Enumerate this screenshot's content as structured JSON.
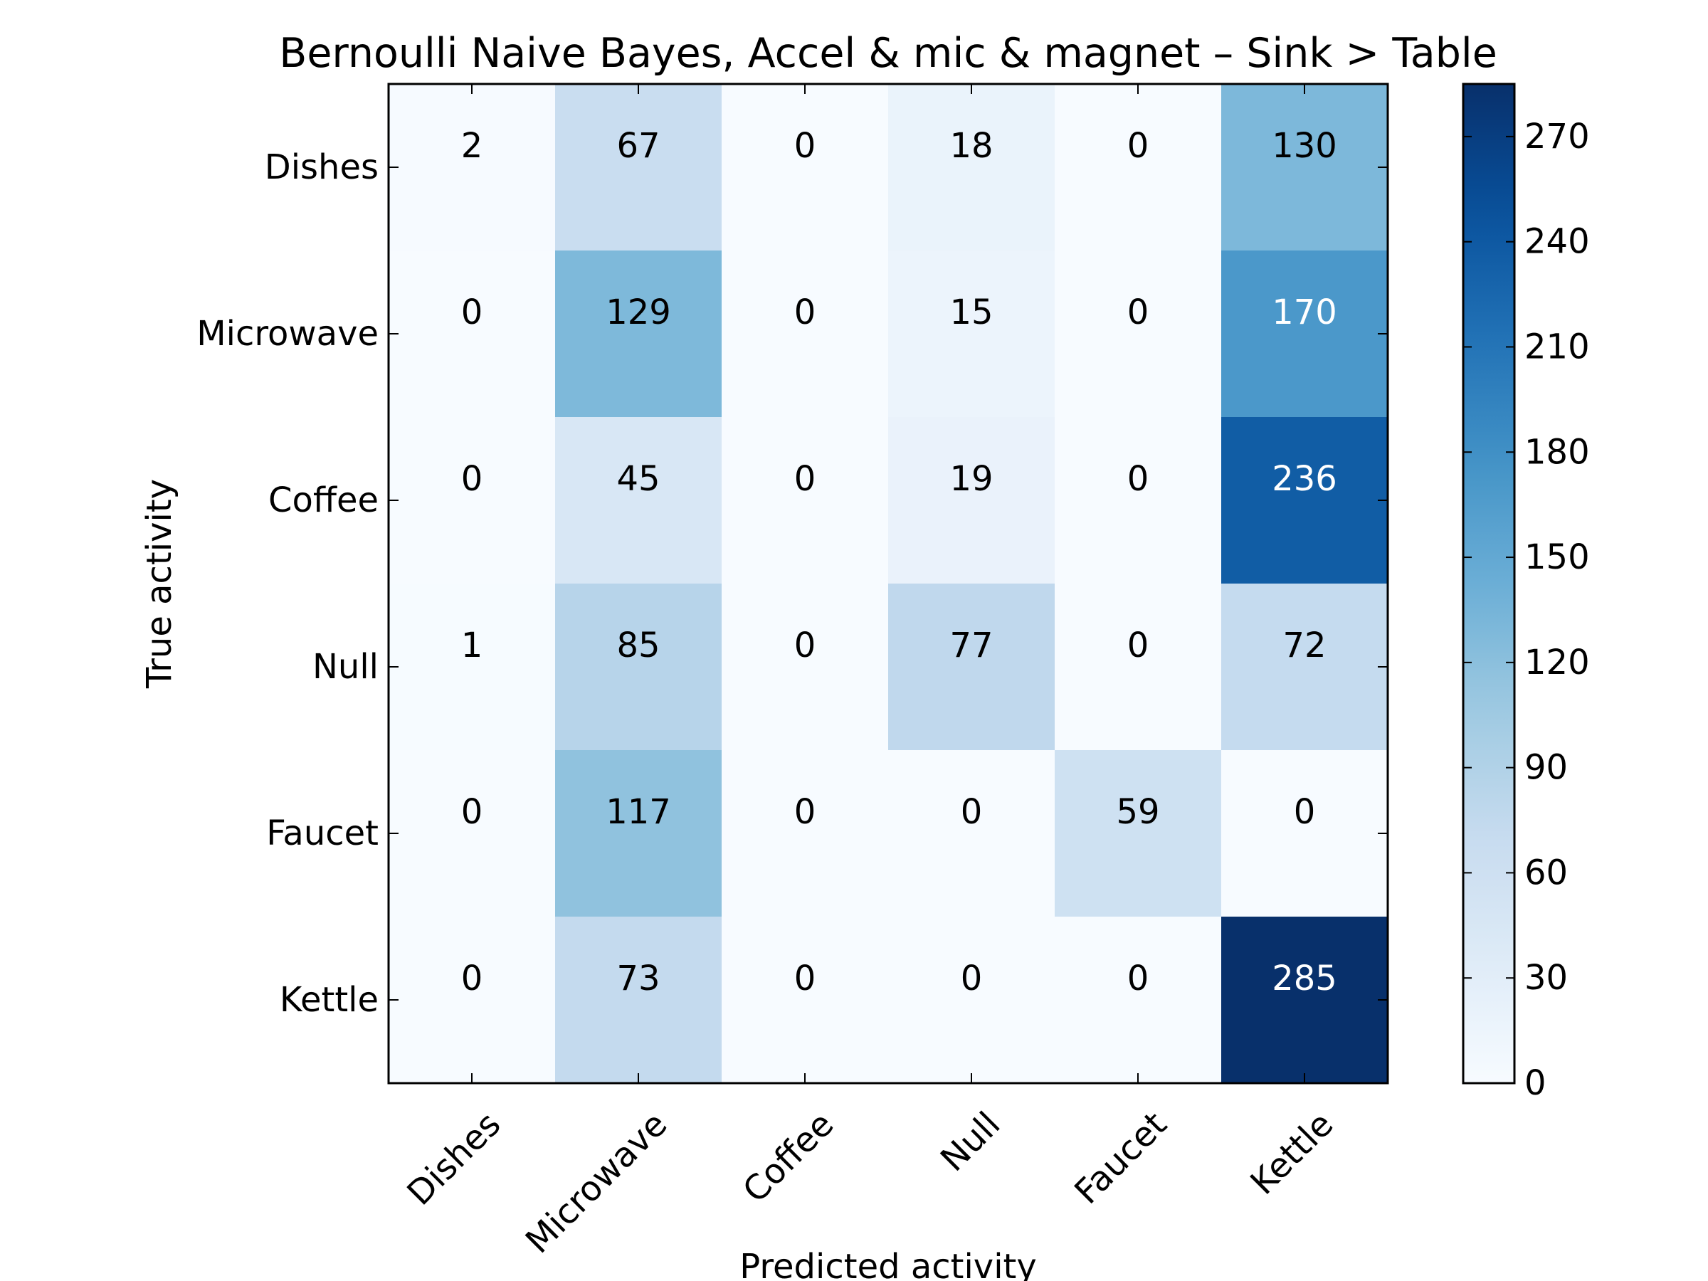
{
  "chart_data": {
    "type": "heatmap",
    "title": "Bernoulli Naive Bayes, Accel & mic & magnet – Sink > Table",
    "xlabel": "Predicted activity",
    "ylabel": "True activity",
    "x_categories": [
      "Dishes",
      "Microwave",
      "Coffee",
      "Null",
      "Faucet",
      "Kettle"
    ],
    "y_categories": [
      "Dishes",
      "Microwave",
      "Coffee",
      "Null",
      "Faucet",
      "Kettle"
    ],
    "values": [
      [
        2,
        67,
        0,
        18,
        0,
        130
      ],
      [
        0,
        129,
        0,
        15,
        0,
        170
      ],
      [
        0,
        45,
        0,
        19,
        0,
        236
      ],
      [
        1,
        85,
        0,
        77,
        0,
        72
      ],
      [
        0,
        117,
        0,
        0,
        59,
        0
      ],
      [
        0,
        73,
        0,
        0,
        0,
        285
      ]
    ],
    "colormap": "Blues",
    "colorbar": {
      "range": [
        0,
        285
      ],
      "ticks": [
        0,
        30,
        60,
        90,
        120,
        150,
        180,
        210,
        240,
        270
      ]
    },
    "text_color_dark": "#000000",
    "text_color_light": "#ffffff"
  }
}
